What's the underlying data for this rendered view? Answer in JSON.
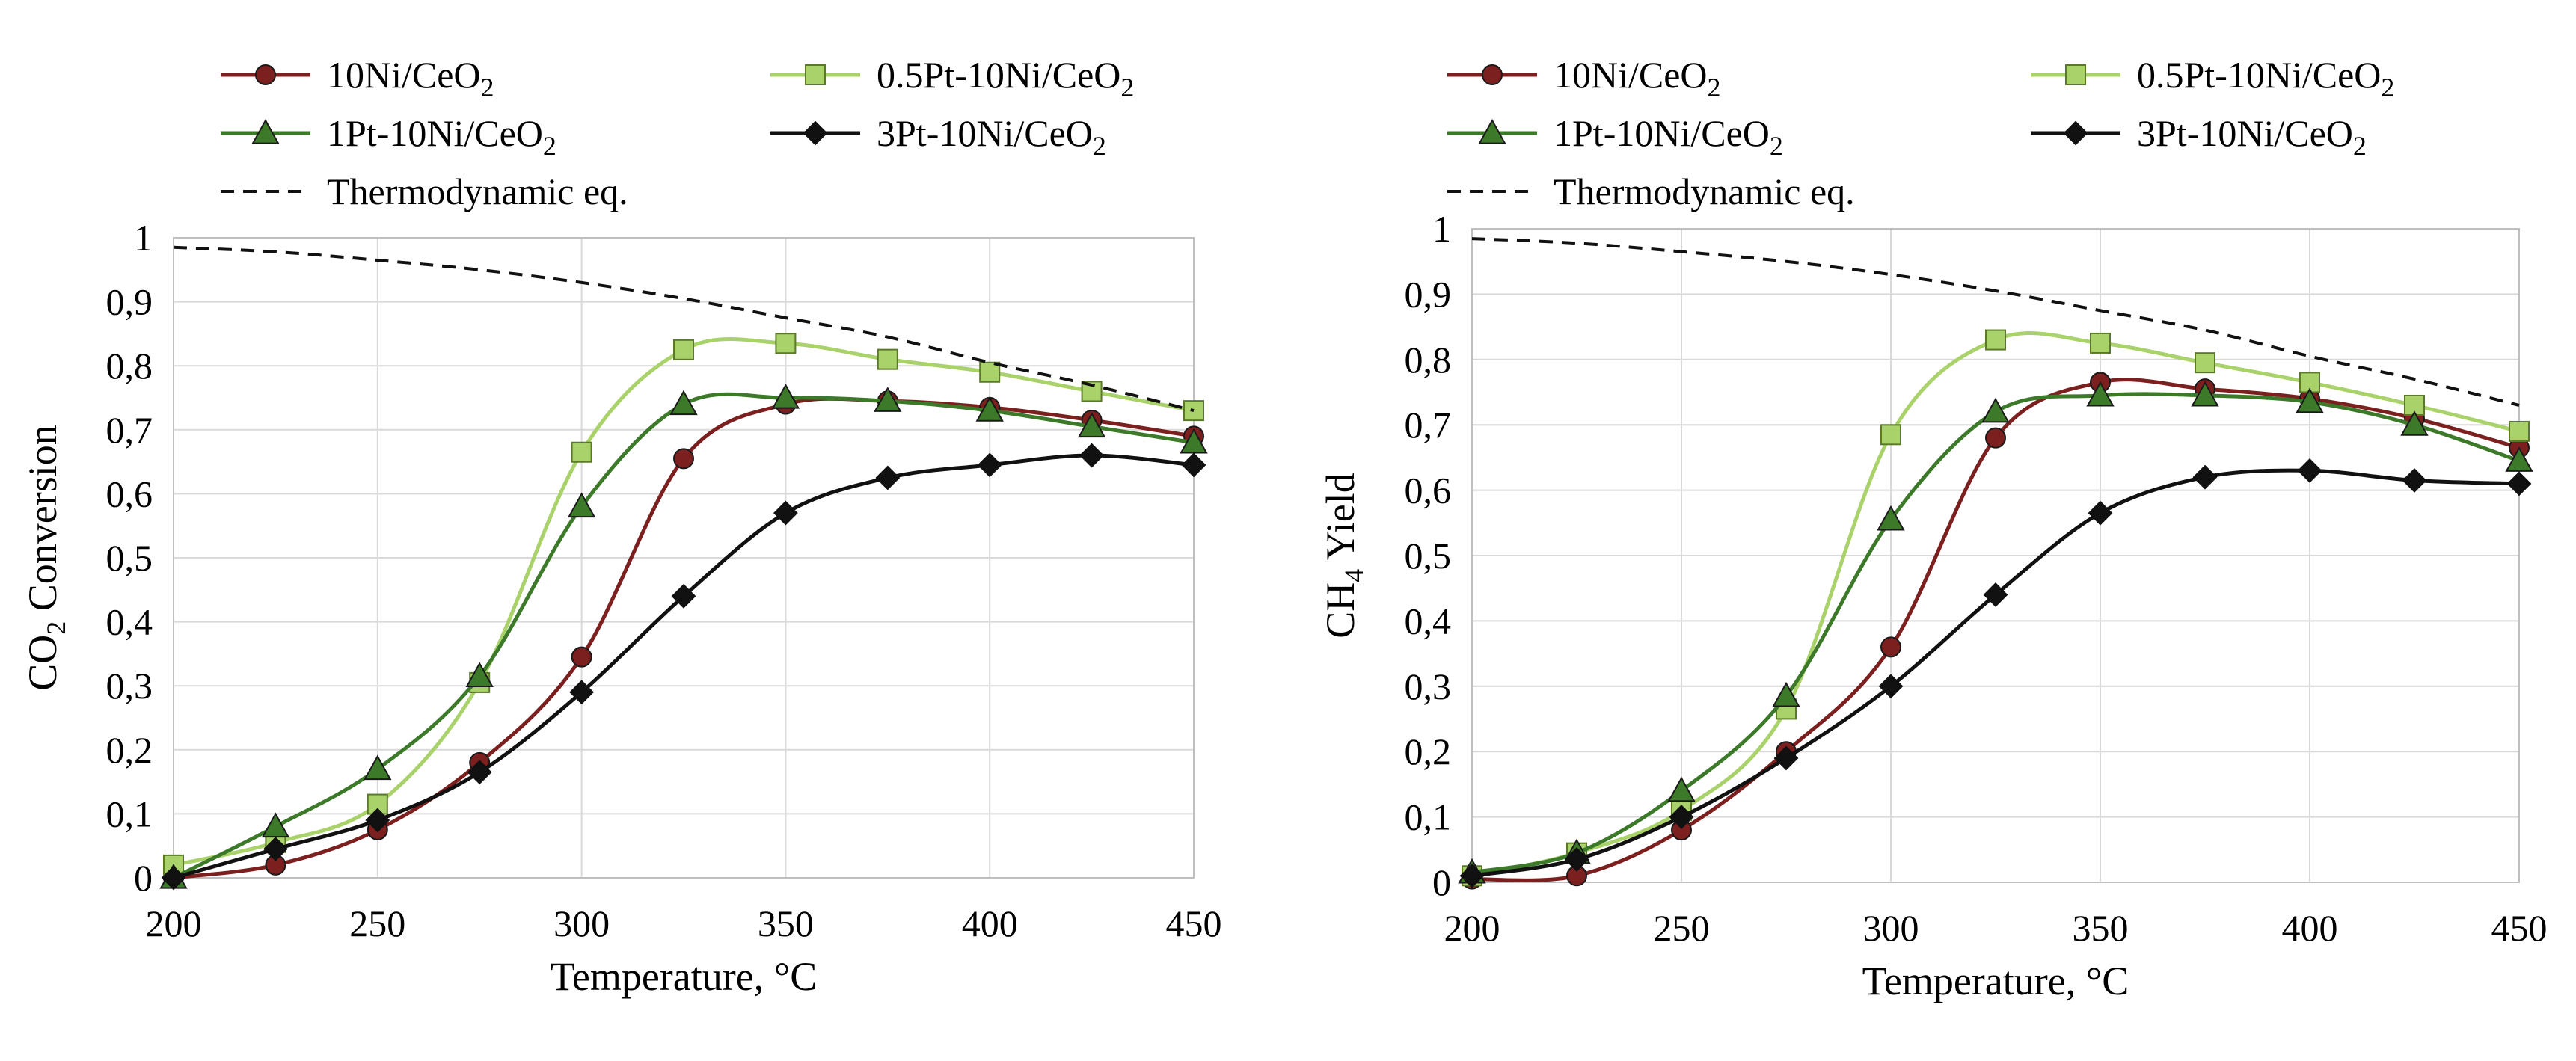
{
  "figure": {
    "name": "co2-methanation-catalyst-comparison"
  },
  "series_styles": [
    {
      "key": "ni",
      "color": "#7b1f1f",
      "marker": "circle"
    },
    {
      "key": "pt05",
      "color": "#a9d26a",
      "marker": "square"
    },
    {
      "key": "pt1",
      "color": "#3c7a2a",
      "marker": "triangle"
    },
    {
      "key": "pt3",
      "color": "#111111",
      "marker": "diamond"
    },
    {
      "key": "thermo",
      "color": "#111111",
      "marker": "none"
    }
  ],
  "chart_data": [
    {
      "type": "line",
      "title": "",
      "xlabel": "Temperature, °C",
      "ylabel": {
        "main": "CO",
        "sub": "2",
        "rest": " Conversion"
      },
      "xlim": [
        200,
        450
      ],
      "ylim": [
        0,
        1
      ],
      "xticks": [
        "200",
        "250",
        "300",
        "350",
        "400",
        "450"
      ],
      "yticks": [
        "0",
        "0,1",
        "0,2",
        "0,3",
        "0,4",
        "0,5",
        "0,6",
        "0,7",
        "0,8",
        "0,9",
        "1"
      ],
      "grid": true,
      "x": [
        200,
        225,
        250,
        275,
        300,
        325,
        350,
        375,
        400,
        425,
        450
      ],
      "legend": [
        {
          "key": "ni",
          "label": {
            "main": " 10Ni/CeO",
            "sub": "2"
          }
        },
        {
          "key": "pt05",
          "label": {
            "main": "0.5Pt-10Ni/CeO",
            "sub": "2"
          }
        },
        {
          "key": "pt1",
          "label": {
            "main": "1Pt-10Ni/CeO",
            "sub": "2"
          }
        },
        {
          "key": "pt3",
          "label": {
            "main": "3Pt-10Ni/CeO",
            "sub": "2"
          }
        },
        {
          "key": "thermo",
          "label": {
            "main": "Thermodynamic eq.",
            "sub": ""
          }
        }
      ],
      "series": [
        {
          "key": "ni",
          "name": "10Ni/CeO2",
          "values": [
            0.0,
            0.02,
            0.075,
            0.18,
            0.345,
            0.655,
            0.74,
            0.745,
            0.735,
            0.715,
            0.69
          ]
        },
        {
          "key": "pt05",
          "name": "0.5Pt-10Ni/CeO2",
          "values": [
            0.02,
            0.055,
            0.115,
            0.305,
            0.665,
            0.825,
            0.835,
            0.81,
            0.79,
            0.76,
            0.73
          ]
        },
        {
          "key": "pt1",
          "name": "1Pt-10Ni/CeO2",
          "values": [
            0.0,
            0.08,
            0.17,
            0.315,
            0.58,
            0.74,
            0.75,
            0.745,
            0.73,
            0.705,
            0.68
          ]
        },
        {
          "key": "pt3",
          "name": "3Pt-10Ni/CeO2",
          "values": [
            0.0,
            0.045,
            0.09,
            0.165,
            0.29,
            0.44,
            0.57,
            0.625,
            0.645,
            0.66,
            0.645
          ]
        },
        {
          "key": "thermo",
          "name": "Thermodynamic eq.",
          "values": [
            0.985,
            0.978,
            0.965,
            0.95,
            0.93,
            0.905,
            0.875,
            0.845,
            0.805,
            0.77,
            0.73
          ]
        }
      ]
    },
    {
      "type": "line",
      "title": "",
      "xlabel": "Temperature, °C",
      "ylabel": {
        "main": "CH",
        "sub": "4",
        "rest": " Yield"
      },
      "xlim": [
        200,
        450
      ],
      "ylim": [
        0,
        1
      ],
      "xticks": [
        "200",
        "250",
        "300",
        "350",
        "400",
        "450"
      ],
      "yticks": [
        "0",
        "0,1",
        "0,2",
        "0,3",
        "0,4",
        "0,5",
        "0,6",
        "0,7",
        "0,8",
        "0,9",
        "1"
      ],
      "grid": true,
      "x": [
        200,
        225,
        250,
        275,
        300,
        325,
        350,
        375,
        400,
        425,
        450
      ],
      "legend": [
        {
          "key": "ni",
          "label": {
            "main": " 10Ni/CeO",
            "sub": "2"
          }
        },
        {
          "key": "pt05",
          "label": {
            "main": "0.5Pt-10Ni/CeO",
            "sub": "2"
          }
        },
        {
          "key": "pt1",
          "label": {
            "main": "1Pt-10Ni/CeO",
            "sub": "2"
          }
        },
        {
          "key": "pt3",
          "label": {
            "main": "3Pt-10Ni/CeO",
            "sub": "2"
          }
        },
        {
          "key": "thermo",
          "label": {
            "main": "Thermodynamic eq.",
            "sub": ""
          }
        }
      ],
      "series": [
        {
          "key": "ni",
          "name": "10Ni/CeO2",
          "values": [
            0.005,
            0.01,
            0.08,
            0.2,
            0.36,
            0.68,
            0.765,
            0.755,
            0.74,
            0.71,
            0.665
          ]
        },
        {
          "key": "pt05",
          "name": "0.5Pt-10Ni/CeO2",
          "values": [
            0.01,
            0.045,
            0.11,
            0.265,
            0.685,
            0.83,
            0.825,
            0.795,
            0.765,
            0.73,
            0.69
          ]
        },
        {
          "key": "pt1",
          "name": "1Pt-10Ni/CeO2",
          "values": [
            0.015,
            0.045,
            0.14,
            0.285,
            0.555,
            0.72,
            0.745,
            0.745,
            0.735,
            0.7,
            0.645
          ]
        },
        {
          "key": "pt3",
          "name": "3Pt-10Ni/CeO2",
          "values": [
            0.01,
            0.035,
            0.1,
            0.19,
            0.3,
            0.44,
            0.565,
            0.62,
            0.63,
            0.615,
            0.61
          ]
        },
        {
          "key": "thermo",
          "name": "Thermodynamic eq.",
          "values": [
            0.985,
            0.978,
            0.965,
            0.95,
            0.93,
            0.905,
            0.875,
            0.845,
            0.805,
            0.77,
            0.73
          ]
        }
      ]
    }
  ]
}
